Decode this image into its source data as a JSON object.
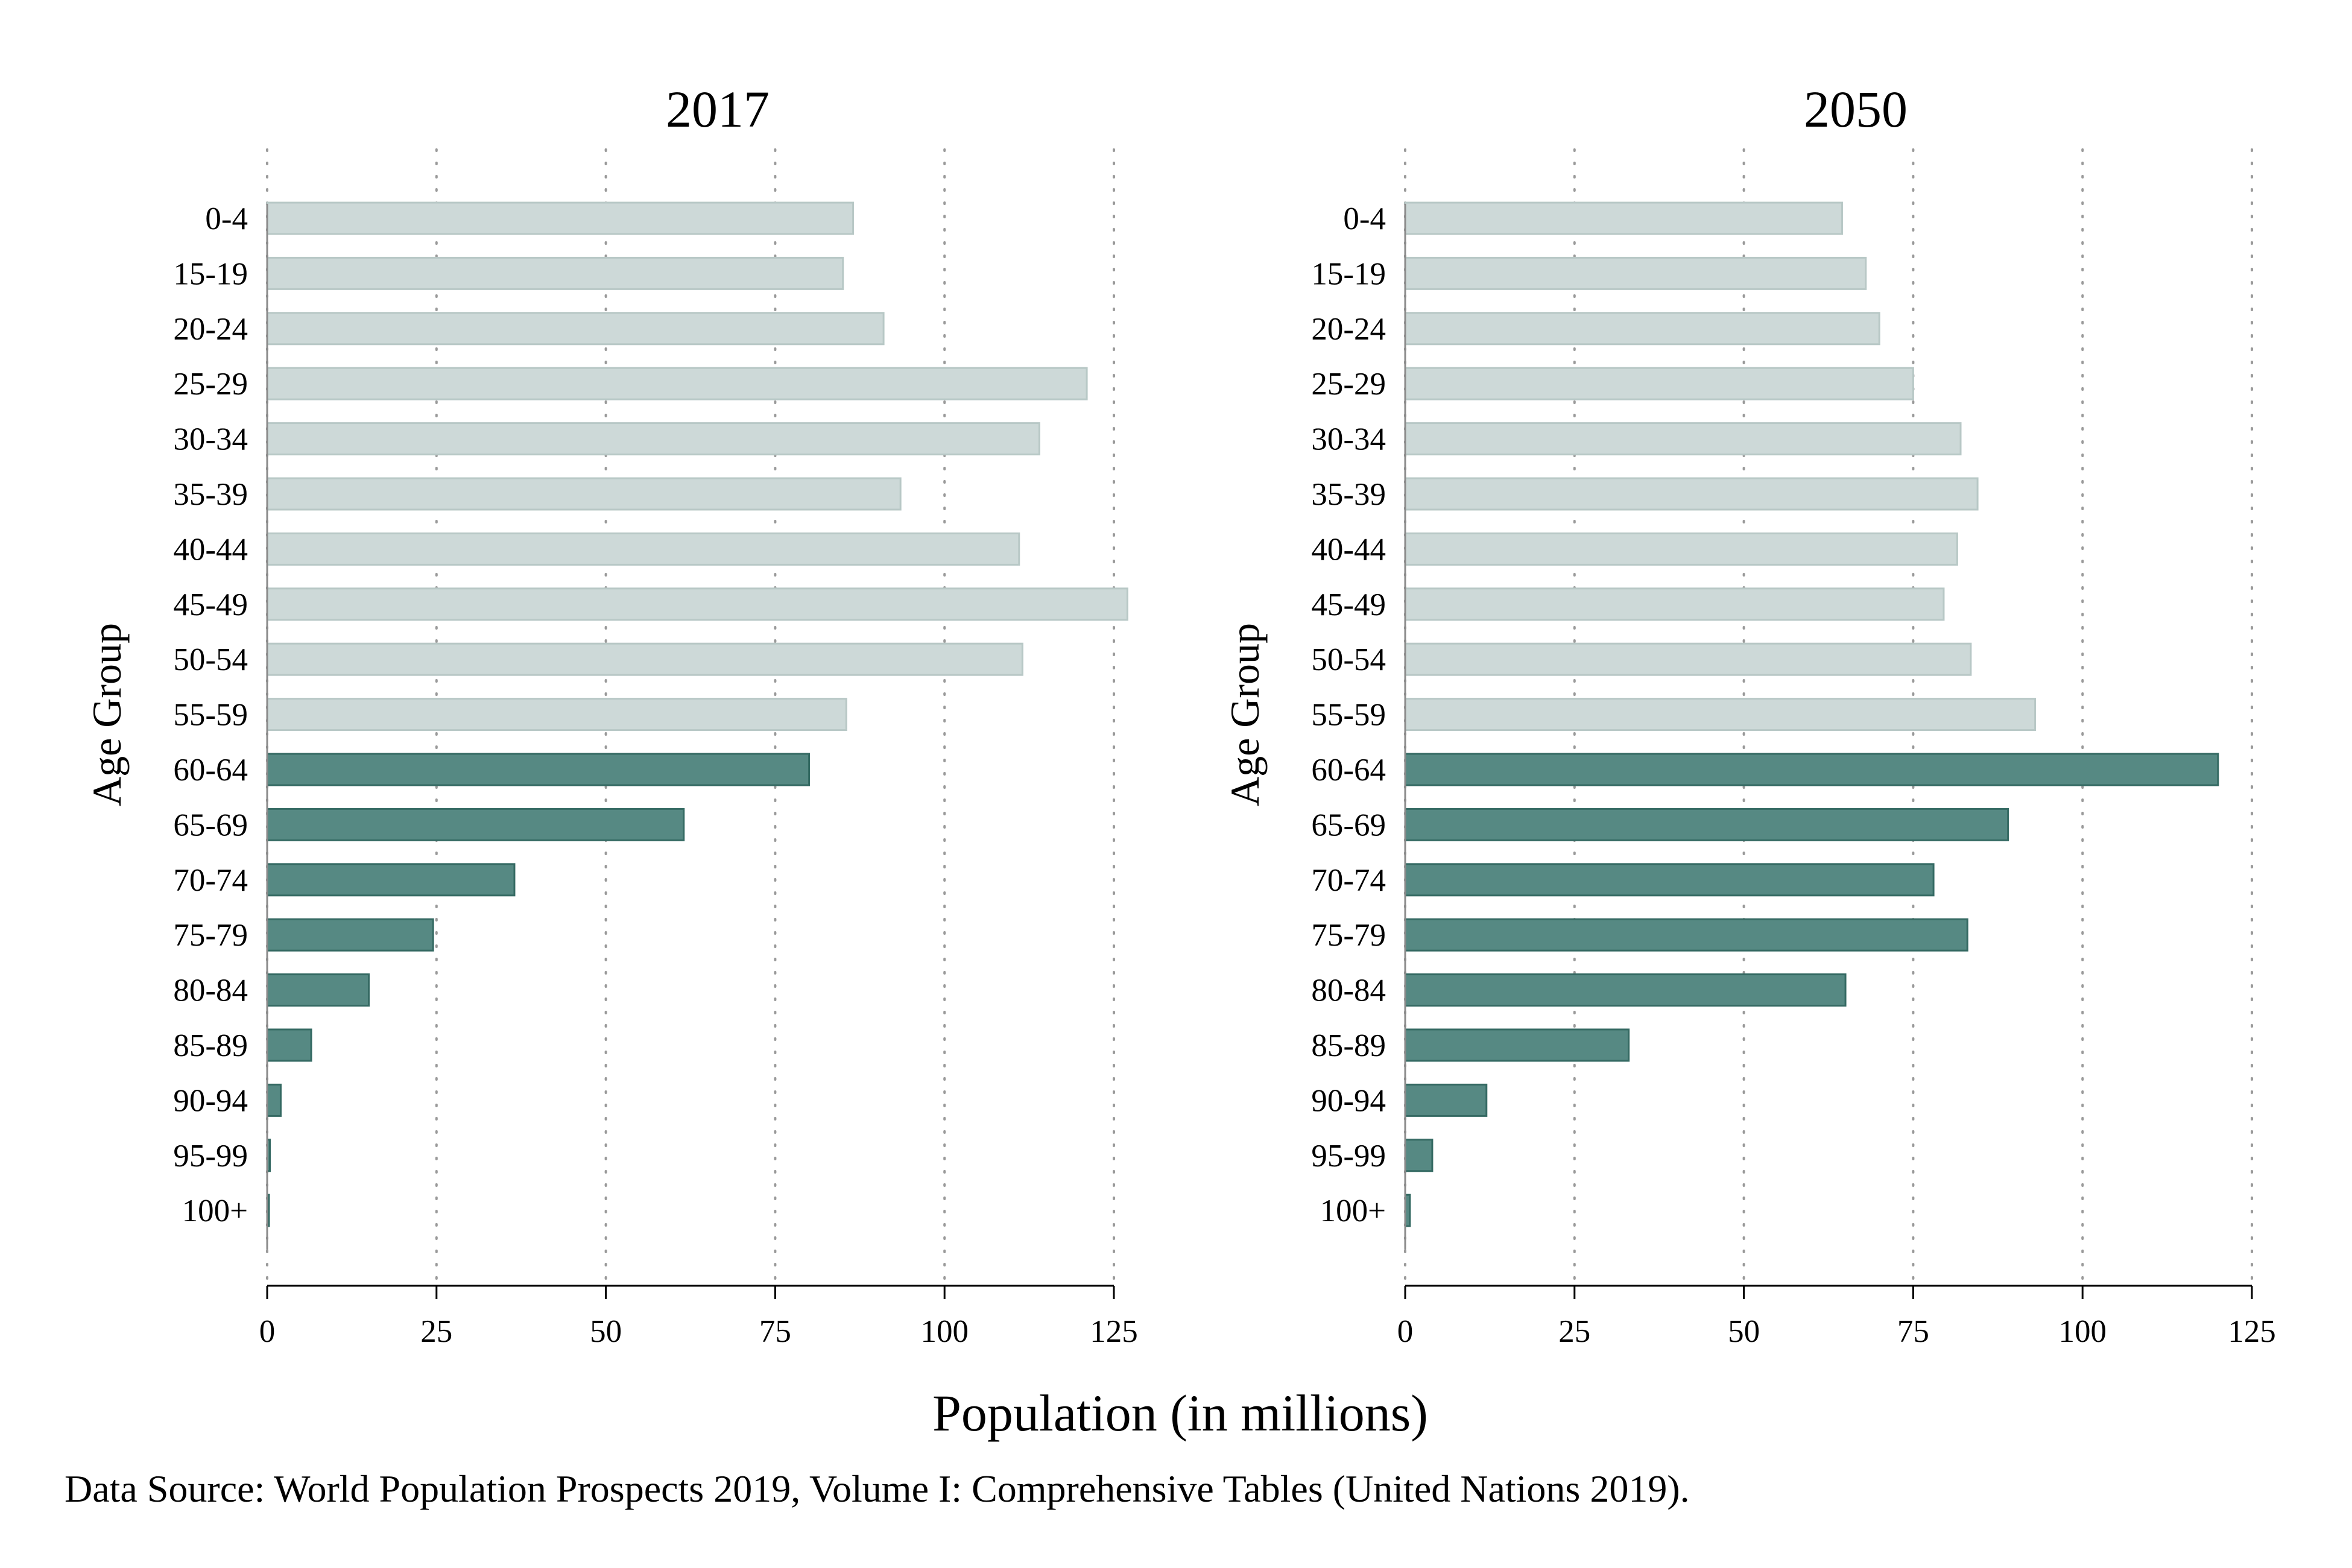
{
  "figure": {
    "xlabel": "Population (in millions)",
    "source": "Data Source: World Population Prospects 2019, Volume I: Comprehensive Tables (United Nations 2019).",
    "colors": {
      "light_bar": "#cdd9d8",
      "light_edge": "#b8c8c6",
      "dark_bar": "#568983",
      "dark_edge": "#356a63",
      "grid": "#9a9a9a",
      "axis": "#000000"
    }
  },
  "chart_data": [
    {
      "type": "bar",
      "orientation": "horizontal",
      "title": "2017",
      "ylabel": "Age Group",
      "categories": [
        "0-4",
        "15-19",
        "20-24",
        "25-29",
        "30-34",
        "35-39",
        "40-44",
        "45-49",
        "50-54",
        "55-59",
        "60-64",
        "65-69",
        "70-74",
        "75-79",
        "80-84",
        "85-89",
        "90-94",
        "95-99",
        "100+"
      ],
      "values": [
        86.5,
        85,
        91,
        121,
        114,
        93.5,
        111,
        127,
        111.5,
        85.5,
        80,
        61.5,
        36.5,
        24.5,
        15,
        6.5,
        2,
        0.4,
        0.1
      ],
      "xticks": [
        "0",
        "25",
        "50",
        "75",
        "100",
        "125"
      ],
      "xlim": [
        0,
        125
      ],
      "highlight_from": "60-64",
      "grid": "vertical dotted"
    },
    {
      "type": "bar",
      "orientation": "horizontal",
      "title": "2050",
      "ylabel": "Age Group",
      "categories": [
        "0-4",
        "15-19",
        "20-24",
        "25-29",
        "30-34",
        "35-39",
        "40-44",
        "45-49",
        "50-54",
        "55-59",
        "60-64",
        "65-69",
        "70-74",
        "75-79",
        "80-84",
        "85-89",
        "90-94",
        "95-99",
        "100+"
      ],
      "values": [
        64.5,
        68,
        70,
        75,
        82,
        84.5,
        81.5,
        79.5,
        83.5,
        93,
        120,
        89,
        78,
        83,
        65,
        33,
        12,
        4,
        0.7
      ],
      "xticks": [
        "0",
        "25",
        "50",
        "75",
        "100",
        "125"
      ],
      "xlim": [
        0,
        125
      ],
      "highlight_from": "60-64",
      "grid": "vertical dotted"
    }
  ]
}
